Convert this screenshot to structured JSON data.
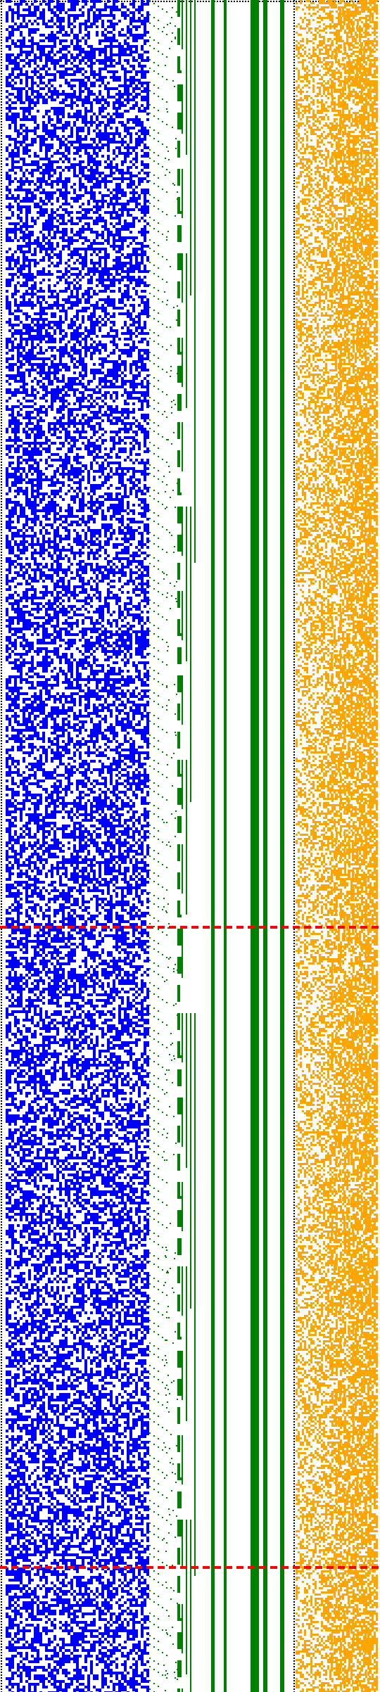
{
  "canvas": {
    "background": "#ffffff"
  },
  "colors": {
    "boundary_dots": "#000000",
    "blue_pattern": "#0000ff",
    "green_staircase": "#008000",
    "green_bars": "#008000",
    "orange_pattern": "#ffa500",
    "red_dashed_lines": "#ff0000"
  },
  "pattern": {
    "grid_cell_units": "1",
    "notes": ""
  },
  "markers": {
    "dashed_red_lines": 2
  }
}
